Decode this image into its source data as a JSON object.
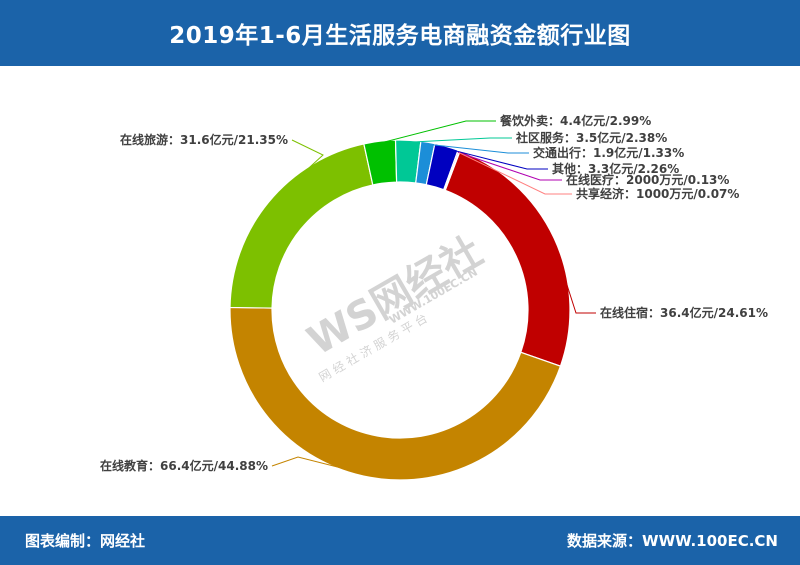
{
  "header": {
    "title": "2019年1-6月生活服务电商融资金额行业图"
  },
  "footer": {
    "left": "图表编制：网经社",
    "right": "数据来源：WWW.100EC.CN"
  },
  "watermark": {
    "logo": "WS网经社",
    "url": "WWW.100EC.CN",
    "slogan": "网 经 社 济 服 务 平 台"
  },
  "colors": {
    "header_bg": "#1b63a9"
  },
  "chart_data": {
    "type": "pie",
    "subtype": "donut",
    "title": "2019年1-6月生活服务电商融资金额行业图",
    "slices": [
      {
        "name": "在线住宿",
        "value": 36.4,
        "unit": "亿元",
        "percent": 24.61,
        "label": "在线住宿：36.4亿元/24.61%",
        "color": "#c00000"
      },
      {
        "name": "在线教育",
        "value": 66.4,
        "unit": "亿元",
        "percent": 44.88,
        "label": "在线教育：66.4亿元/44.88%",
        "color": "#c48400"
      },
      {
        "name": "在线旅游",
        "value": 31.6,
        "unit": "亿元",
        "percent": 21.35,
        "label": "在线旅游：31.6亿元/21.35%",
        "color": "#7dc000"
      },
      {
        "name": "餐饮外卖",
        "value": 4.4,
        "unit": "亿元",
        "percent": 2.99,
        "label": "餐饮外卖：4.4亿元/2.99%",
        "color": "#00c000"
      },
      {
        "name": "社区服务",
        "value": 3.5,
        "unit": "亿元",
        "percent": 2.38,
        "label": "社区服务：3.5亿元/2.38%",
        "color": "#00c896"
      },
      {
        "name": "交通出行",
        "value": 1.9,
        "unit": "亿元",
        "percent": 1.33,
        "label": "交通出行：1.9亿元/1.33%",
        "color": "#1c8ed8"
      },
      {
        "name": "其他",
        "value": 3.3,
        "unit": "亿元",
        "percent": 2.26,
        "label": "其他：3.3亿元/2.26%",
        "color": "#0000c0"
      },
      {
        "name": "在线医疗",
        "value": 2000,
        "unit": "万元",
        "percent": 0.13,
        "label": "在线医疗：2000万元/0.13%",
        "color": "#b000b0"
      },
      {
        "name": "共享经济",
        "value": 1000,
        "unit": "万元",
        "percent": 0.07,
        "label": "共享经济：1000万元/0.07%",
        "color": "#ff8080"
      }
    ],
    "legend": "none"
  }
}
